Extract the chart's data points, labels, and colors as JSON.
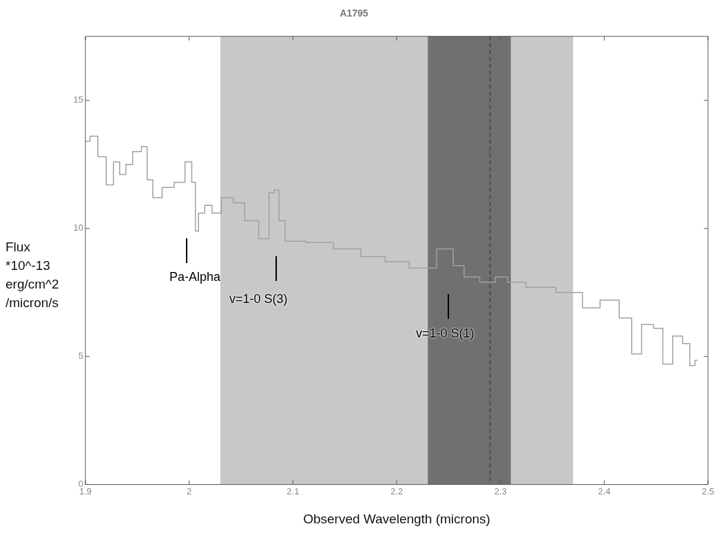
{
  "chart_data": {
    "type": "step",
    "title": "A1795",
    "xlabel": "Observed Wavelength (microns)",
    "ylabel": "Flux *10^-13 erg/cm^2 /micron/s",
    "xlim": [
      1.9,
      2.5
    ],
    "xticks": [
      1.9,
      2,
      2.1,
      2.2,
      2.3,
      2.4,
      2.5
    ],
    "ylim": [
      0,
      17.5
    ],
    "yticks": [
      0,
      5,
      10,
      15
    ],
    "grid": false,
    "legend": false,
    "marker": "none",
    "line_style": "solid",
    "bands": [
      {
        "axis": "x",
        "from": 2.03,
        "to": 2.37,
        "color": "#c8c8c8"
      },
      {
        "axis": "x",
        "from": 2.23,
        "to": 2.31,
        "color": "#707070"
      }
    ],
    "ref_lines": [
      {
        "axis": "x",
        "value": 2.29,
        "color": "#404040",
        "line_style": "dashed"
      }
    ],
    "annotations": [
      "Pa-Alpha",
      "v=1-0 S(3)",
      "v=1-0 S(1)"
    ],
    "series": [
      {
        "color": "#a0a0a0",
        "x": [
          1.9,
          1.909,
          1.915,
          1.925,
          1.929,
          1.937,
          1.941,
          1.95,
          1.958,
          1.961,
          1.969,
          1.979,
          1.992,
          2.0,
          2.005,
          2.007,
          2.011,
          2.019,
          2.025,
          2.037,
          2.048,
          2.059,
          2.075,
          2.079,
          2.085,
          2.088,
          2.097,
          2.128,
          2.15,
          2.181,
          2.197,
          2.227,
          2.25,
          2.259,
          2.271,
          2.289,
          2.301,
          2.313,
          2.336,
          2.371,
          2.387,
          2.405,
          2.424,
          2.429,
          2.443,
          2.452,
          2.461,
          2.471,
          2.48,
          2.485,
          2.49
        ],
        "values": [
          13.4,
          13.6,
          12.8,
          11.7,
          12.6,
          12.1,
          12.5,
          13.0,
          13.2,
          11.9,
          11.2,
          11.6,
          11.8,
          12.6,
          11.8,
          9.9,
          10.6,
          10.9,
          10.6,
          11.2,
          11.0,
          10.3,
          9.6,
          11.4,
          11.5,
          10.3,
          9.5,
          9.45,
          9.2,
          8.9,
          8.7,
          8.45,
          9.2,
          8.55,
          8.1,
          7.9,
          8.1,
          7.9,
          7.7,
          7.5,
          6.9,
          7.2,
          6.5,
          5.1,
          6.25,
          6.1,
          4.7,
          5.8,
          5.5,
          4.65,
          4.85
        ]
      }
    ]
  }
}
